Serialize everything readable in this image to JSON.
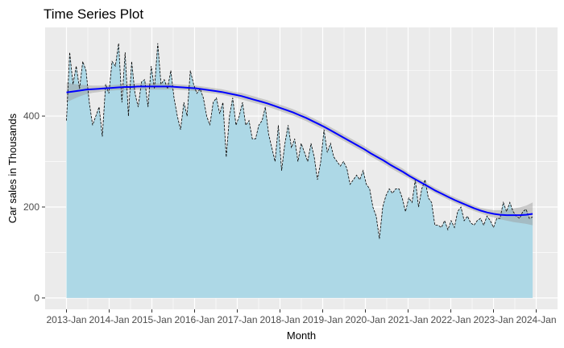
{
  "chart_data": {
    "type": "area",
    "title": "Time Series Plot",
    "xlabel": "Month",
    "ylabel": "Car sales in Thousands",
    "x_start": "2013-01",
    "x_end": "2023-12",
    "x_ticks": [
      "2013-Jan",
      "2014-Jan",
      "2015-Jan",
      "2016-Jan",
      "2017-Jan",
      "2018-Jan",
      "2019-Jan",
      "2020-Jan",
      "2021-Jan",
      "2022-Jan",
      "2023-Jan",
      "2024-Jan"
    ],
    "xlim": [
      "2012-07",
      "2024-07"
    ],
    "y_ticks": [
      0,
      200,
      400
    ],
    "ylim": [
      -25,
      595
    ],
    "grid": true,
    "legend": "none",
    "colors": {
      "panel": "#ebebeb",
      "grid": "#ffffff",
      "area_fill": "#add8e6",
      "series_line": "#000000",
      "trend_line": "#0000ff",
      "confidence_band": "#999999"
    },
    "series": [
      {
        "values": [
          390,
          540,
          470,
          510,
          460,
          520,
          500,
          430,
          380,
          400,
          420,
          355,
          470,
          450,
          520,
          510,
          560,
          430,
          540,
          400,
          520,
          450,
          420,
          475,
          480,
          420,
          510,
          460,
          560,
          470,
          480,
          460,
          500,
          440,
          400,
          370,
          430,
          400,
          500,
          470,
          450,
          460,
          440,
          400,
          380,
          430,
          440,
          405,
          430,
          310,
          400,
          440,
          380,
          400,
          430,
          380,
          390,
          350,
          350,
          380,
          390,
          420,
          360,
          330,
          300,
          380,
          280,
          340,
          380,
          330,
          350,
          300,
          340,
          320,
          300,
          340,
          310,
          260,
          300,
          370,
          320,
          340,
          310,
          300,
          290,
          300,
          285,
          250,
          260,
          270,
          260,
          280,
          250,
          240,
          200,
          180,
          130,
          200,
          225,
          240,
          230,
          240,
          240,
          220,
          190,
          220,
          210,
          260,
          200,
          240,
          260,
          220,
          210,
          160,
          160,
          155,
          170,
          150,
          170,
          155,
          190,
          200,
          170,
          180,
          165,
          160,
          170,
          175,
          160,
          180,
          170,
          155,
          175,
          175,
          210,
          190,
          210,
          190,
          180,
          175,
          190,
          195,
          175,
          178
        ]
      },
      {
        "values": [
          452,
          454,
          456,
          458,
          459,
          460,
          461,
          462,
          463,
          464,
          464,
          465,
          465,
          465,
          465,
          465,
          465,
          464,
          463,
          462,
          461,
          459,
          457,
          455,
          453,
          450,
          447,
          444,
          440,
          436,
          432,
          428,
          423,
          418,
          413,
          408,
          402,
          396,
          389,
          382,
          375,
          367,
          359,
          351,
          343,
          335,
          327,
          318,
          310,
          302,
          293,
          285,
          277,
          268,
          260,
          252,
          244,
          236,
          229,
          222,
          215,
          209,
          203,
          197,
          192,
          188,
          185,
          183,
          182,
          182,
          182,
          183,
          185
        ]
      }
    ],
    "confidence_band": {
      "lower": [
        430,
        437,
        443,
        448,
        451,
        453,
        455,
        456,
        457,
        457,
        457,
        458,
        458,
        458,
        458,
        458,
        458,
        458,
        457,
        456,
        455,
        453,
        451,
        449,
        447,
        444,
        441,
        437,
        433,
        429,
        425,
        421,
        416,
        411,
        406,
        401,
        395,
        389,
        382,
        375,
        368,
        360,
        352,
        344,
        336,
        328,
        320,
        311,
        303,
        295,
        286,
        278,
        270,
        262,
        254,
        246,
        238,
        230,
        223,
        216,
        209,
        203,
        197,
        191,
        186,
        181,
        177,
        173,
        170,
        167,
        165,
        163,
        160
      ],
      "upper": [
        474,
        471,
        469,
        468,
        467,
        467,
        467,
        468,
        469,
        471,
        471,
        472,
        472,
        472,
        472,
        472,
        472,
        470,
        469,
        468,
        467,
        465,
        463,
        461,
        459,
        456,
        453,
        451,
        447,
        443,
        439,
        435,
        430,
        425,
        420,
        415,
        409,
        403,
        396,
        389,
        382,
        374,
        366,
        358,
        350,
        342,
        334,
        325,
        317,
        309,
        300,
        292,
        284,
        274,
        266,
        258,
        250,
        242,
        235,
        228,
        221,
        215,
        209,
        203,
        198,
        195,
        193,
        193,
        194,
        197,
        199,
        203,
        210
      ]
    }
  }
}
